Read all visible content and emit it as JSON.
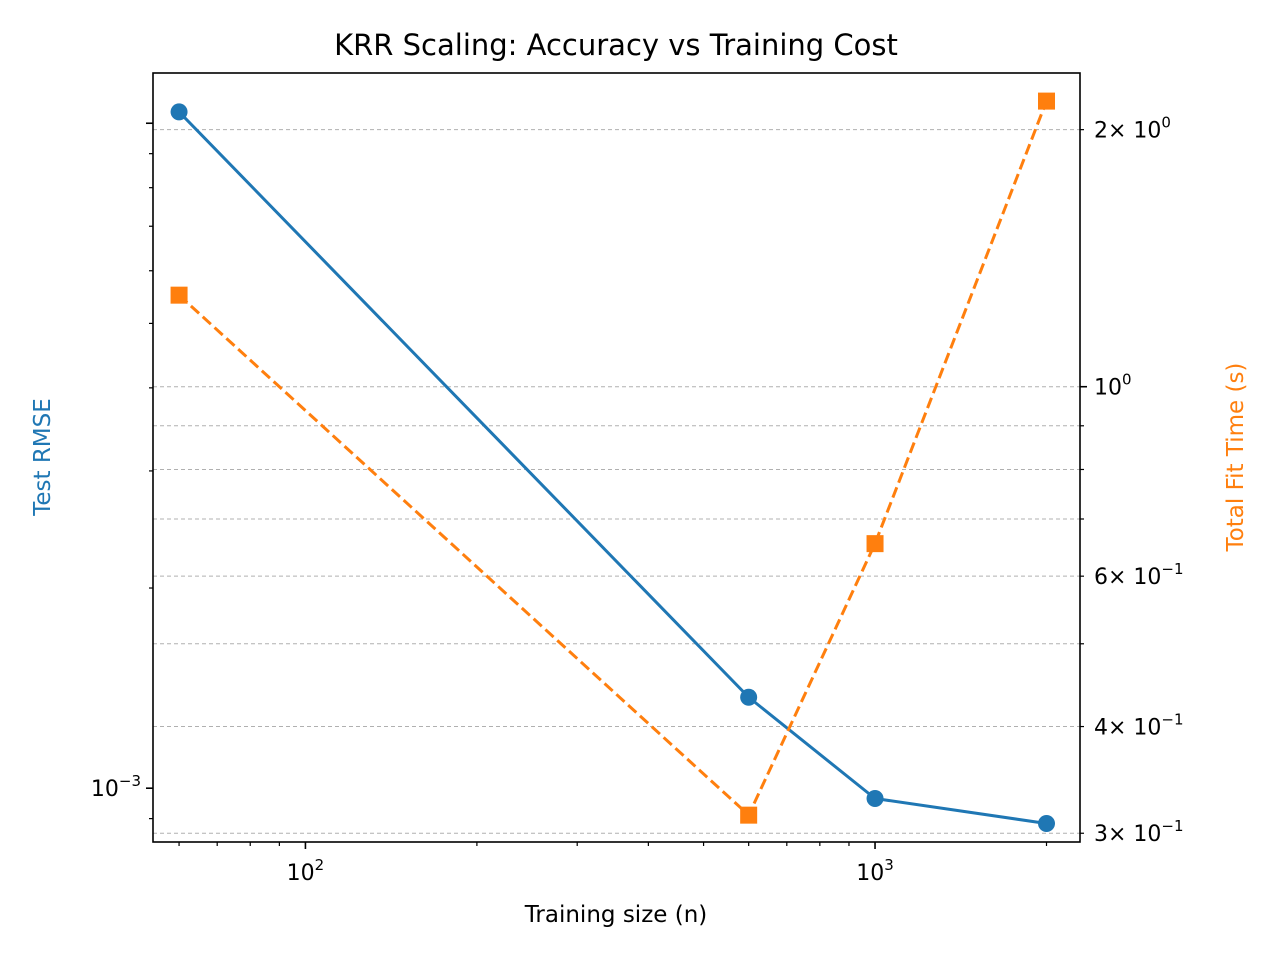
{
  "chart_data": {
    "type": "line",
    "title": "KRR Scaling: Accuracy vs Training Cost",
    "xlabel": "Training size (n)",
    "ylabel_left": "Test RMSE",
    "ylabel_right": "Total Fit Time (s)",
    "x_scale": "log",
    "y_left_scale": "log",
    "y_right_scale": "log",
    "x": [
      60,
      600,
      1000,
      2000
    ],
    "xlim": [
      54,
      2290
    ],
    "ylim_left": [
      0.00083,
      0.0119
    ],
    "ylim_right": [
      0.293,
      2.33
    ],
    "grid": "right-axis horizontal dashed",
    "series": [
      {
        "axis": "left",
        "values": [
          0.0104,
          0.00137,
          0.000965,
          0.000885
        ],
        "color": "#1f77b4",
        "marker": "circle",
        "linestyle": "solid"
      },
      {
        "axis": "right",
        "values": [
          1.28,
          0.315,
          0.655,
          2.16
        ],
        "color": "#ff7f0e",
        "marker": "square",
        "linestyle": "dashed"
      }
    ],
    "x_ticks": [
      {
        "value": 100,
        "base": "10",
        "exp": "2"
      },
      {
        "value": 1000,
        "base": "10",
        "exp": "3"
      }
    ],
    "y_left_ticks": [
      {
        "value": 0.001,
        "base": "10",
        "exp": "−3"
      }
    ],
    "y_right_ticks": [
      {
        "value": 2,
        "mant": "2",
        "base": "× 10",
        "exp": "0"
      },
      {
        "value": 1,
        "mant": "",
        "base": "10",
        "exp": "0"
      },
      {
        "value": 0.6,
        "mant": "6",
        "base": "× 10",
        "exp": "−1"
      },
      {
        "value": 0.4,
        "mant": "4",
        "base": "× 10",
        "exp": "−1"
      },
      {
        "value": 0.3,
        "mant": "3",
        "base": "× 10",
        "exp": "−1"
      }
    ]
  }
}
